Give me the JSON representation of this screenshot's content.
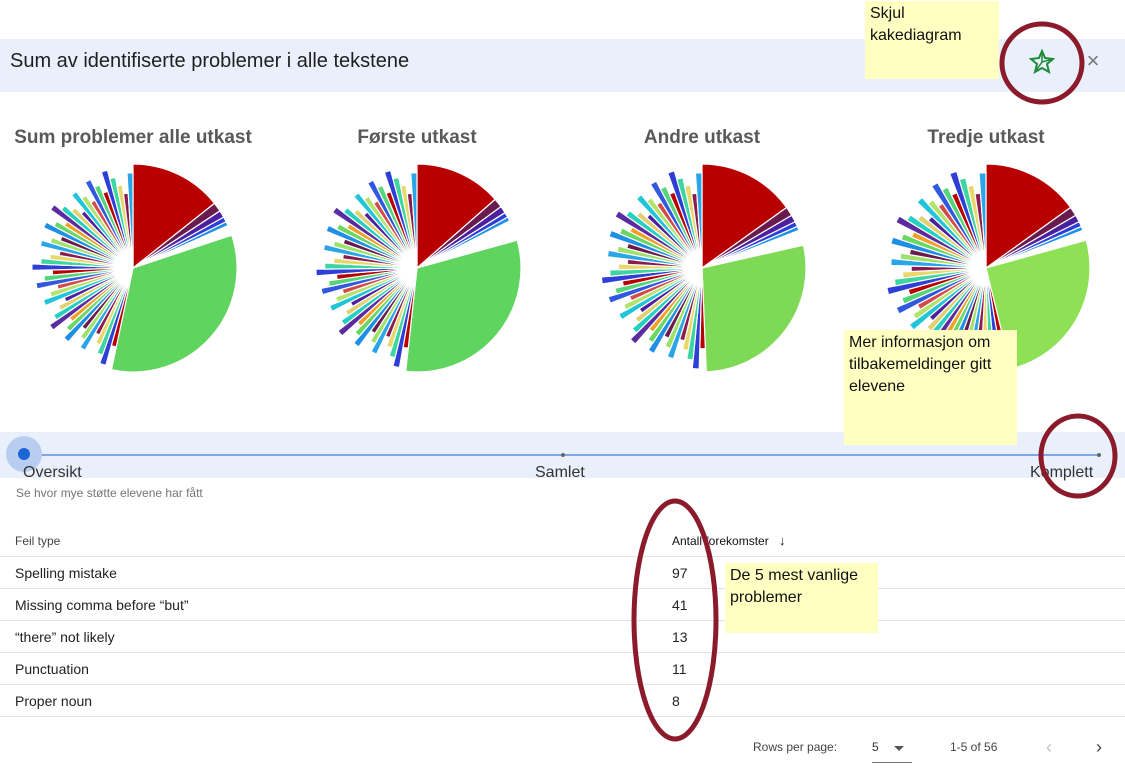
{
  "header": {
    "title": "Sum av identifiserte problemer i alle tekstene",
    "pie_icon": "pie-chart-icon",
    "close_label": "×"
  },
  "charts": {
    "titles": [
      "Sum problemer alle utkast",
      "Første utkast",
      "Andre utkast",
      "Tredje utkast"
    ]
  },
  "slider": {
    "steps": [
      "Oversikt",
      "Samlet",
      "Komplett"
    ],
    "selected": "Oversikt",
    "subtitle": "Se hvor mye støtte elevene har fått"
  },
  "table": {
    "headers": {
      "type": "Feil type",
      "count": "Antall forekomster",
      "sort_icon": "arrow-down-icon"
    },
    "rows": [
      {
        "type": "Spelling mistake",
        "count": "97"
      },
      {
        "type": "Missing comma before “but”",
        "count": "41"
      },
      {
        "type": "“there” not likely",
        "count": "13"
      },
      {
        "type": "Punctuation",
        "count": "11"
      },
      {
        "type": "Proper noun",
        "count": "8"
      }
    ]
  },
  "pagination": {
    "rows_per_page_label": "Rows per page:",
    "rows_per_page_value": "5",
    "range": "1-5 of 56",
    "prev_label": "‹",
    "next_label": "›"
  },
  "annotations": {
    "notes": [
      "Skjul kakediagram",
      "Mer informasjon om tilbakemeldinger gitt elevene",
      "De 5 mest vanlige problemer"
    ],
    "circle_color": "#8b1a2b",
    "note_color": "#ffffc2"
  },
  "colors": {
    "accent": "#1a66d6",
    "header_bg": "#e9effb",
    "icon_green": "#1e8a3a"
  }
}
